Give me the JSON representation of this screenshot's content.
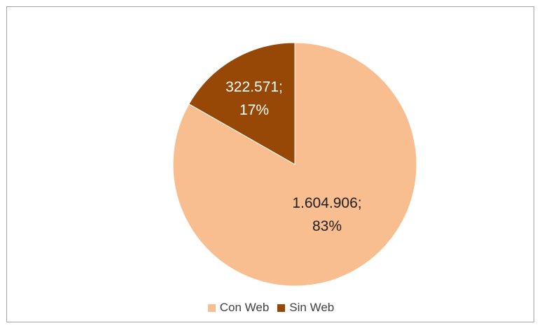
{
  "chart_data": {
    "type": "pie",
    "slices": [
      {
        "name": "Con Web",
        "value": 1604906,
        "value_label": "1.604.906;",
        "percent_label": "83%",
        "color": "#f9be8f",
        "label_color": "#1f1f1f"
      },
      {
        "name": "Sin Web",
        "value": 322571,
        "value_label": "322.571;",
        "percent_label": "17%",
        "color": "#974706",
        "label_color": "#ffffff"
      }
    ],
    "legend_placement": "bottom",
    "start_angle": "12 o'clock, counter-clockwise for second slice",
    "background": "#ffffff",
    "border_color": "#a6a6a6"
  }
}
